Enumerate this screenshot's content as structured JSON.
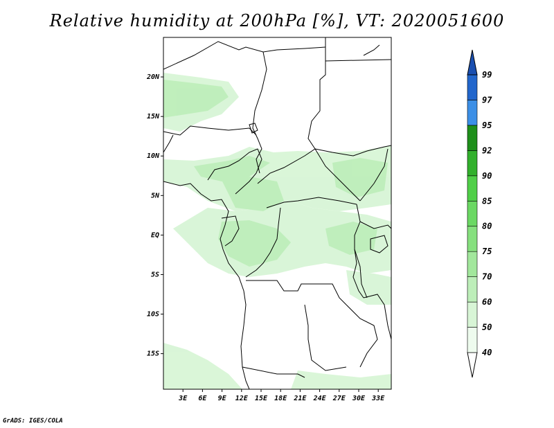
{
  "title": "Relative humidity at 200hPa [%], VT: 2020051600",
  "credit": "GrADS: IGES/COLA",
  "map": {
    "lat_labels": [
      {
        "label": "20N",
        "lat": 20
      },
      {
        "label": "15N",
        "lat": 15
      },
      {
        "label": "10N",
        "lat": 10
      },
      {
        "label": "5N",
        "lat": 5
      },
      {
        "label": "EQ",
        "lat": 0
      },
      {
        "label": "5S",
        "lat": -5
      },
      {
        "label": "10S",
        "lat": -10
      },
      {
        "label": "15S",
        "lat": -15
      }
    ],
    "lon_labels": [
      {
        "label": "3E",
        "lon": 3
      },
      {
        "label": "6E",
        "lon": 6
      },
      {
        "label": "9E",
        "lon": 9
      },
      {
        "label": "12E",
        "lon": 12
      },
      {
        "label": "15E",
        "lon": 15
      },
      {
        "label": "18E",
        "lon": 18
      },
      {
        "label": "21E",
        "lon": 21
      },
      {
        "label": "24E",
        "lon": 24
      },
      {
        "label": "27E",
        "lon": 27
      },
      {
        "label": "30E",
        "lon": 30
      },
      {
        "label": "33E",
        "lon": 33
      }
    ],
    "lon_range": [
      0,
      35
    ],
    "lat_range": [
      -19.5,
      25
    ]
  },
  "legend": {
    "levels": [
      "40",
      "50",
      "60",
      "70",
      "75",
      "80",
      "85",
      "90",
      "92",
      "95",
      "97",
      "99"
    ],
    "colors": [
      "#eefbee",
      "#d8f5d6",
      "#bdeeb9",
      "#a2e79c",
      "#86e07e",
      "#6bd863",
      "#50cf48",
      "#32b02c",
      "#1e8f1a",
      "#3c8fe6",
      "#2266cc",
      "#1a4fb0"
    ],
    "bottom_arrow_color": "#ffffff",
    "top_arrow_color": "#1a4fb0"
  }
}
